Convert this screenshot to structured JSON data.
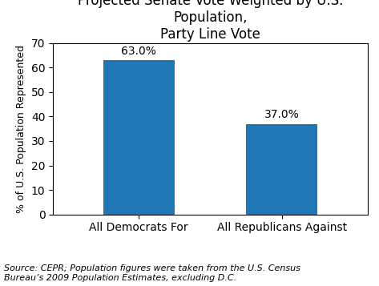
{
  "chart_data": {
    "type": "bar",
    "title": "Projected Senate Vote Weighted by U.S. Population,\nParty Line Vote",
    "ylabel": "% of U.S. Population Represented",
    "categories": [
      "All Democrats For",
      "All Republicans Against"
    ],
    "values": [
      63.0,
      37.0
    ],
    "data_labels": true,
    "value_labels": [
      "63.0%",
      "37.0%"
    ],
    "ylim": [
      0,
      70
    ],
    "yticks": [
      0,
      10,
      20,
      30,
      40,
      50,
      60,
      70
    ],
    "grid": false,
    "annotations": [
      "Source: CEPR; Population figures were taken from the U.S. Census\nBureau’s 2009 Population Estimates, excluding D.C."
    ]
  }
}
